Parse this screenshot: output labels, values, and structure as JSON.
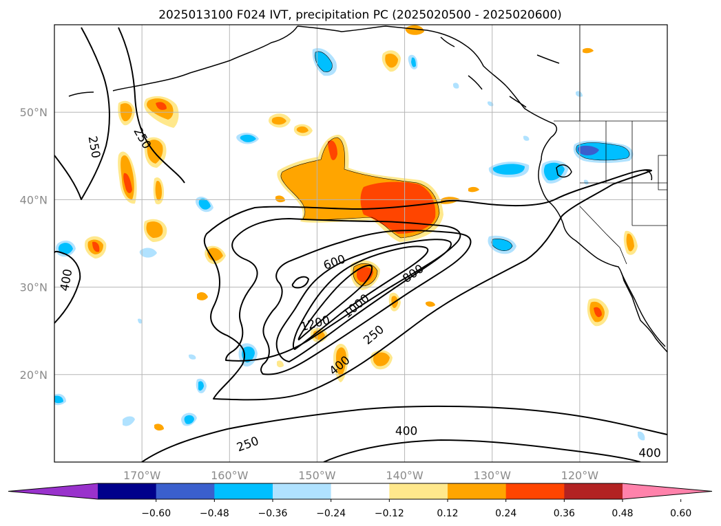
{
  "chart_data": {
    "type": "contour-map",
    "title": "2025013100 F024 IVT, precipitation PC (2025020500 - 2025020600)",
    "xlim": [
      -180,
      -110
    ],
    "ylim": [
      10,
      60
    ],
    "x_ticks": [
      {
        "value": -170,
        "label": "170°W"
      },
      {
        "value": -160,
        "label": "160°W"
      },
      {
        "value": -150,
        "label": "150°W"
      },
      {
        "value": -140,
        "label": "140°W"
      },
      {
        "value": -130,
        "label": "130°W"
      },
      {
        "value": -120,
        "label": "120°W"
      }
    ],
    "y_ticks": [
      {
        "value": 20,
        "label": "20°N"
      },
      {
        "value": 30,
        "label": "30°N"
      },
      {
        "value": 40,
        "label": "40°N"
      },
      {
        "value": 50,
        "label": "50°N"
      }
    ],
    "grid": true,
    "ivt_contour_levels": [
      250,
      400,
      600,
      800,
      1000,
      1200
    ],
    "ivt_contour_labels": [
      {
        "text": "250",
        "lon": -175.5,
        "lat": 46.0,
        "rot": 80
      },
      {
        "text": "250",
        "lon": -170.0,
        "lat": 47.0,
        "rot": 60
      },
      {
        "text": "400",
        "lon": -178.6,
        "lat": 30.8,
        "rot": -80
      },
      {
        "text": "600",
        "lon": -148.0,
        "lat": 32.8,
        "rot": -20
      },
      {
        "text": "800",
        "lon": -139.0,
        "lat": 31.5,
        "rot": -35
      },
      {
        "text": "1000",
        "lon": -145.5,
        "lat": 27.8,
        "rot": -40
      },
      {
        "text": "1200",
        "lon": -150.2,
        "lat": 25.8,
        "rot": -15
      },
      {
        "text": "400",
        "lon": -147.4,
        "lat": 21.0,
        "rot": -40
      },
      {
        "text": "250",
        "lon": -143.5,
        "lat": 24.5,
        "rot": -40
      },
      {
        "text": "400",
        "lon": -139.8,
        "lat": 13.5,
        "rot": 0
      },
      {
        "text": "250",
        "lon": -157.9,
        "lat": 12.0,
        "rot": -20
      },
      {
        "text": "400",
        "lon": -112.0,
        "lat": 11.0,
        "rot": 0
      }
    ],
    "precip_pc_colorbar": {
      "boundaries": [
        -0.6,
        -0.48,
        -0.36,
        -0.24,
        -0.12,
        0.12,
        0.24,
        0.36,
        0.48,
        0.6
      ],
      "tick_labels": [
        "−0.60",
        "−0.48",
        "−0.36",
        "−0.24",
        "−0.12",
        "0.12",
        "0.24",
        "0.36",
        "0.48",
        "0.60"
      ],
      "colors": [
        "#9932cc",
        "#00008b",
        "#3a5fcd",
        "#00bfff",
        "#b0e2ff",
        "#ffffff",
        "#ffe88c",
        "#ffa500",
        "#ff4500",
        "#b22222",
        "#ff82ab"
      ],
      "extend": "both"
    }
  }
}
